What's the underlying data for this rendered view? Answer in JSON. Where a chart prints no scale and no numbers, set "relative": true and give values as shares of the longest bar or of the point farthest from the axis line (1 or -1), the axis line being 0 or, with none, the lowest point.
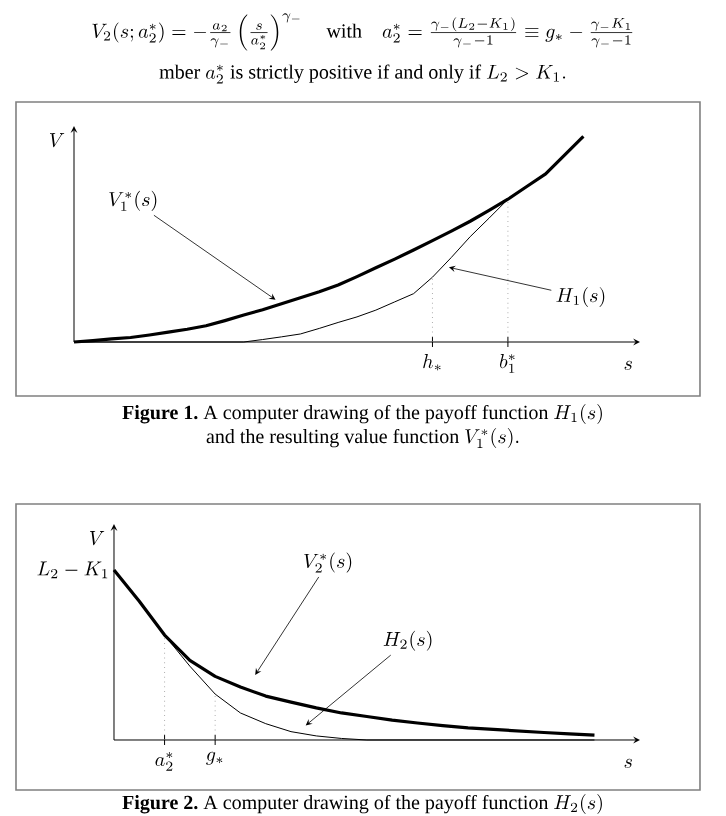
{
  "chart_data": [
    {
      "type": "other",
      "annotations": [
        "V_2(s;a_2^*) = -\\frac{a_2}{\\gamma_-}\\left(\\frac{s}{a_2^*}\\right)^{\\gamma_-} \\quad\\hbox{with}\\quad a_2^* = \\frac{\\gamma_-(L_2-K_1)}{\\gamma_- - 1} \\equiv g_* - \\frac{\\gamma_- K_1}{\\gamma_- - 1}",
        "\\hbox{mber }a_2^*\\hbox{ is strictly positive if and only if }L_2 > K_1."
      ]
    },
    {
      "type": "line",
      "relative": true,
      "xlabel": "s",
      "ylabel": "V",
      "line_style": "solid",
      "categories": [
        null,
        null,
        null,
        null,
        null,
        null,
        null,
        null,
        null,
        null,
        null,
        null,
        null,
        null,
        null,
        null,
        null,
        null,
        null,
        "h_*",
        null,
        null,
        null,
        "b_1^*",
        null,
        null,
        null,
        null
      ],
      "series": [
        {
          "color": "#000000",
          "values": [
            0,
            0.007,
            0.015,
            0.022,
            0.034,
            0.048,
            0.062,
            0.079,
            0.104,
            0.131,
            0.157,
            0.186,
            0.215,
            0.244,
            0.277,
            0.318,
            0.361,
            0.403,
            0.447,
            0.493,
            0.539,
            0.587,
            0.64,
            0.694,
            0.756,
            0.817,
            0.909,
            1
          ]
        },
        {
          "color": "#000000",
          "values": [
            0,
            0,
            0,
            0,
            0,
            0,
            0,
            0,
            0,
            0,
            0.012,
            0.025,
            0.039,
            0.066,
            0.095,
            0.122,
            0.155,
            0.195,
            0.235,
            0.315,
            0.411,
            0.512,
            0.602,
            0.694,
            null,
            null,
            null,
            null
          ]
        }
      ],
      "annotations": [
        "\\hbox{\\bfseries Figure 1.}\\ \\hbox{A computer drawing of the payoff function }H_1(s)",
        "\\hbox{and the resulting value function }V_1^*(s).",
        "V_1^*(s)",
        "H_1(s)"
      ]
    },
    {
      "type": "line",
      "relative": true,
      "xlabel": "s",
      "ylabel": "V",
      "line_style": "solid",
      "categories": [
        null,
        null,
        "a_2^*",
        null,
        "g_*",
        null,
        null,
        null,
        null,
        null,
        null,
        null,
        null,
        null,
        null,
        null,
        null,
        null,
        null,
        null
      ],
      "series": [
        {
          "color": "#000000",
          "values": [
            1,
            0.816,
            0.617,
            0.468,
            0.374,
            0.312,
            0.258,
            0.223,
            0.189,
            0.159,
            0.138,
            0.117,
            0.1,
            0.085,
            0.071,
            0.062,
            0.053,
            0.044,
            0.036,
            0.029
          ]
        },
        {
          "color": "#000000",
          "values": [
            1,
            0.81,
            0.616,
            0.434,
            0.27,
            0.159,
            0.096,
            0.049,
            0.024,
            0.009,
            0,
            0,
            0,
            0,
            0,
            0,
            0,
            0,
            0,
            0
          ]
        }
      ],
      "annotations": [
        "\\hbox{\\bfseries Figure 2.}\\ \\hbox{A computer drawing of the payoff function }H_2(s)",
        "L_2 - K_1",
        "V_2^*(s)",
        "H_2(s)"
      ]
    }
  ]
}
